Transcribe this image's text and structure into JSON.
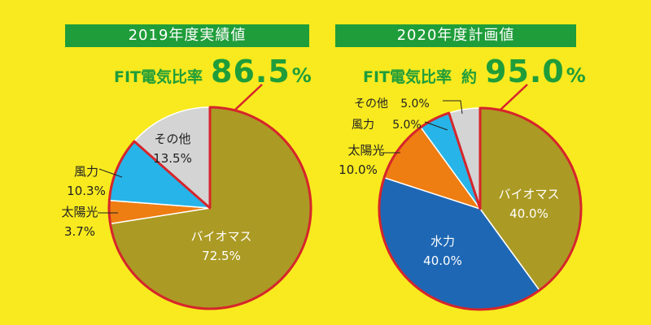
{
  "colors": {
    "background": "#f8ea1e",
    "banner": "#1f9d3a",
    "highlight_outline": "#d6252b"
  },
  "left": {
    "banner": "2019年度実績値",
    "fit_label": "FIT電気比率",
    "fit_value": "86.5",
    "fit_unit": "%"
  },
  "right": {
    "banner": "2020年度計画値",
    "fit_label": "FIT電気比率",
    "fit_prefix": "約",
    "fit_value": "95.0",
    "fit_unit": "%"
  },
  "chart_data": [
    {
      "type": "pie",
      "title": "2019年度実績値",
      "slices": [
        {
          "label": "バイオマス",
          "value": 72.5,
          "value_label": "72.5%",
          "color": "#ab9a24",
          "fit": true
        },
        {
          "label": "太陽光",
          "value": 3.7,
          "value_label": "3.7%",
          "color": "#ee7d12",
          "fit": true
        },
        {
          "label": "風力",
          "value": 10.3,
          "value_label": "10.3%",
          "color": "#27b4e8",
          "fit": true
        },
        {
          "label": "その他",
          "value": 13.5,
          "value_label": "13.5%",
          "color": "#d4d4d4",
          "fit": false
        }
      ]
    },
    {
      "type": "pie",
      "title": "2020年度計画値",
      "slices": [
        {
          "label": "バイオマス",
          "value": 40.0,
          "value_label": "40.0%",
          "color": "#ab9a24",
          "fit": true
        },
        {
          "label": "水力",
          "value": 40.0,
          "value_label": "40.0%",
          "color": "#1e67b4",
          "fit": true
        },
        {
          "label": "太陽光",
          "value": 10.0,
          "value_label": "10.0%",
          "color": "#ee7d12",
          "fit": true
        },
        {
          "label": "風力",
          "value": 5.0,
          "value_label": "5.0%",
          "color": "#27b4e8",
          "fit": true
        },
        {
          "label": "その他",
          "value": 5.0,
          "value_label": "5.0%",
          "color": "#d4d4d4",
          "fit": false
        }
      ]
    }
  ]
}
